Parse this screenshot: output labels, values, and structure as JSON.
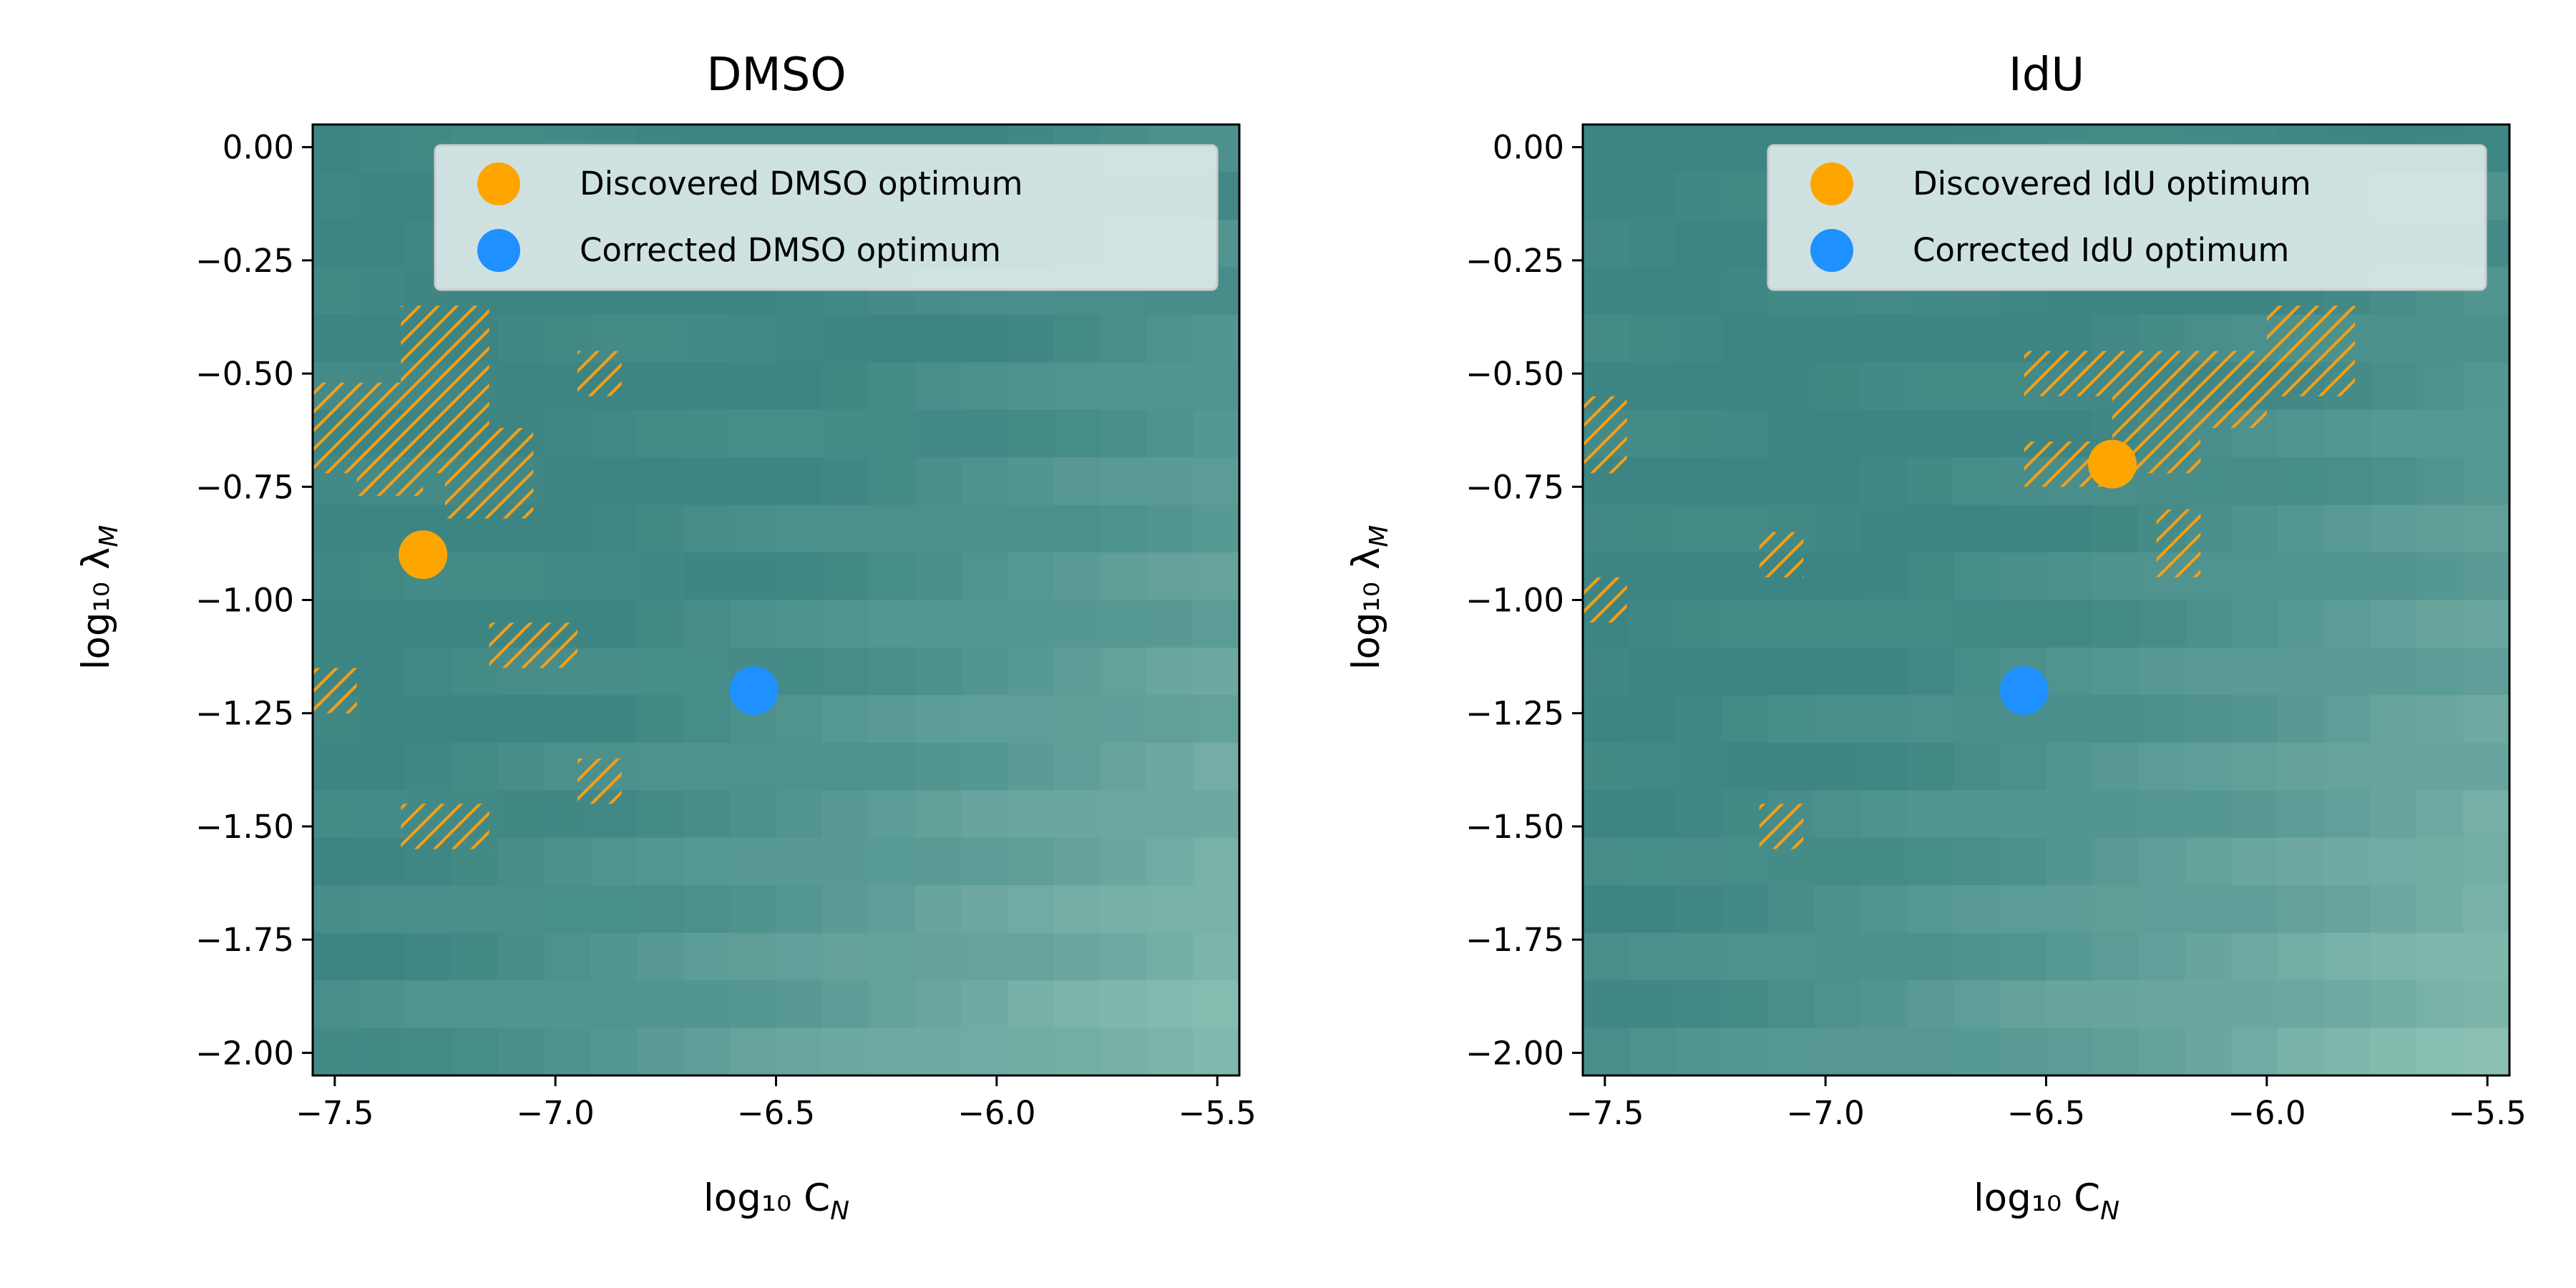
{
  "chart_data": [
    {
      "type": "heatmap",
      "title": "DMSO",
      "xlabel": "log₁₀ C",
      "xlabel_sub": "N",
      "ylabel": "log₁₀ λ",
      "ylabel_sub": "M",
      "xlim": [
        -7.55,
        -5.45
      ],
      "ylim": [
        -2.05,
        0.05
      ],
      "xticks": [
        -7.5,
        -7.0,
        -6.5,
        -6.0,
        -5.5
      ],
      "xtick_labels": [
        "−7.5",
        "−7.0",
        "−6.5",
        "−6.0",
        "−5.5"
      ],
      "yticks": [
        0.0,
        -0.25,
        -0.5,
        -0.75,
        -1.0,
        -1.25,
        -1.5,
        -1.75,
        -2.0
      ],
      "ytick_labels": [
        "0.00",
        "−0.25",
        "−0.50",
        "−0.75",
        "−1.00",
        "−1.25",
        "−1.50",
        "−1.75",
        "−2.00"
      ],
      "grid": {
        "x_start": -7.55,
        "x_step": 0.105,
        "nx": 20,
        "y_start": 0.05,
        "y_step": -0.105,
        "ny": 20
      },
      "colors": {
        "low": "#3d8583",
        "high": "#b2ddcc",
        "hatch": "#f59f17"
      },
      "bright_region": "lower-right",
      "hatched_regions": [
        {
          "x": [
            -7.55,
            -7.35
          ],
          "y": [
            -0.72,
            -0.52
          ]
        },
        {
          "x": [
            -7.35,
            -7.15
          ],
          "y": [
            -0.72,
            -0.35
          ]
        },
        {
          "x": [
            -7.45,
            -7.3
          ],
          "y": [
            -0.77,
            -0.65
          ]
        },
        {
          "x": [
            -7.25,
            -7.05
          ],
          "y": [
            -0.82,
            -0.62
          ]
        },
        {
          "x": [
            -6.95,
            -6.85
          ],
          "y": [
            -0.55,
            -0.45
          ]
        },
        {
          "x": [
            -7.15,
            -6.95
          ],
          "y": [
            -1.15,
            -1.05
          ]
        },
        {
          "x": [
            -7.55,
            -7.45
          ],
          "y": [
            -1.25,
            -1.15
          ]
        },
        {
          "x": [
            -6.95,
            -6.85
          ],
          "y": [
            -1.45,
            -1.35
          ]
        },
        {
          "x": [
            -7.35,
            -7.15
          ],
          "y": [
            -1.55,
            -1.45
          ]
        }
      ],
      "points": [
        {
          "name": "Discovered DMSO optimum",
          "x": -7.3,
          "y": -0.9,
          "color": "#ffa500"
        },
        {
          "name": "Corrected DMSO optimum",
          "x": -6.55,
          "y": -1.2,
          "color": "#1e90ff"
        }
      ],
      "legend": "top-right"
    },
    {
      "type": "heatmap",
      "title": "IdU",
      "xlabel": "log₁₀ C",
      "xlabel_sub": "N",
      "ylabel": "log₁₀ λ",
      "ylabel_sub": "M",
      "xlim": [
        -7.55,
        -5.45
      ],
      "ylim": [
        -2.05,
        0.05
      ],
      "xticks": [
        -7.5,
        -7.0,
        -6.5,
        -6.0,
        -5.5
      ],
      "xtick_labels": [
        "−7.5",
        "−7.0",
        "−6.5",
        "−6.0",
        "−5.5"
      ],
      "yticks": [
        0.0,
        -0.25,
        -0.5,
        -0.75,
        -1.0,
        -1.25,
        -1.5,
        -1.75,
        -2.0
      ],
      "ytick_labels": [
        "0.00",
        "−0.25",
        "−0.50",
        "−0.75",
        "−1.00",
        "−1.25",
        "−1.50",
        "−1.75",
        "−2.00"
      ],
      "grid": {
        "x_start": -7.55,
        "x_step": 0.105,
        "nx": 20,
        "y_start": 0.05,
        "y_step": -0.105,
        "ny": 20
      },
      "colors": {
        "low": "#3d8583",
        "high": "#b2ddcc",
        "hatch": "#f59f17"
      },
      "bright_region": "lower-right",
      "hatched_regions": [
        {
          "x": [
            -7.55,
            -7.45
          ],
          "y": [
            -0.72,
            -0.55
          ]
        },
        {
          "x": [
            -7.55,
            -7.45
          ],
          "y": [
            -1.05,
            -0.95
          ]
        },
        {
          "x": [
            -7.15,
            -7.05
          ],
          "y": [
            -0.95,
            -0.85
          ]
        },
        {
          "x": [
            -7.15,
            -7.05
          ],
          "y": [
            -1.55,
            -1.45
          ]
        },
        {
          "x": [
            -6.55,
            -6.35
          ],
          "y": [
            -0.55,
            -0.45
          ]
        },
        {
          "x": [
            -6.55,
            -6.35
          ],
          "y": [
            -0.75,
            -0.65
          ]
        },
        {
          "x": [
            -6.35,
            -6.15
          ],
          "y": [
            -0.72,
            -0.45
          ]
        },
        {
          "x": [
            -6.25,
            -6.15
          ],
          "y": [
            -0.95,
            -0.8
          ]
        },
        {
          "x": [
            -6.15,
            -6.0
          ],
          "y": [
            -0.62,
            -0.45
          ]
        },
        {
          "x": [
            -6.0,
            -5.8
          ],
          "y": [
            -0.55,
            -0.35
          ]
        }
      ],
      "points": [
        {
          "name": "Discovered IdU optimum",
          "x": -6.35,
          "y": -0.7,
          "color": "#ffa500"
        },
        {
          "name": "Corrected IdU optimum",
          "x": -6.55,
          "y": -1.2,
          "color": "#1e90ff"
        }
      ],
      "legend": "top-right"
    }
  ]
}
